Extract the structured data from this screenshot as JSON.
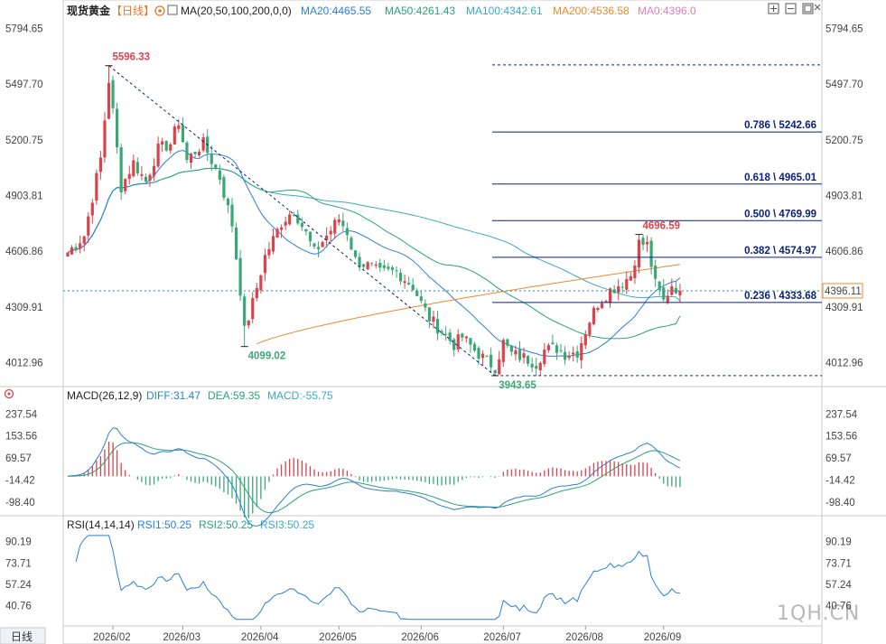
{
  "header": {
    "title": "现货黄金",
    "period_tag": "【日线】",
    "indicator_name": "MA(20,50,100,200,0,0)",
    "ma20": "MA20:4465.55",
    "ma50": "MA50:4261.43",
    "ma100": "MA100:4342.61",
    "ma200": "MA200:4536.58",
    "ma0": "MA0:4396.0"
  },
  "macd_header": {
    "name": "MACD(26,12,9)",
    "diff": "DIFF:31.47",
    "dea": "DEA:59.35",
    "macd": "MACD:-55.75"
  },
  "rsi_header": {
    "name": "RSI(14,14,14)",
    "rsi1": "RSI1:50.25",
    "rsi2": "RSI2:50.25",
    "rsi3": "RSI3:50.25"
  },
  "period_button": "日线",
  "watermark": "1QH.CN",
  "colors": {
    "up": "#d9434b",
    "down": "#3aa876",
    "ma20": "#2a7fd8",
    "ma50": "#2aa376",
    "ma100": "#3aa8c8",
    "ma200": "#e98a2f",
    "ma0": "#e07fbf",
    "fib": "#0b1f7a",
    "diff": "#2a7fd8",
    "dea": "#2aa376",
    "rsi": "#2a7fd8"
  },
  "chart_data": [
    {
      "type": "candlestick",
      "title": "现货黄金 日线",
      "ylim": [
        3900,
        5850
      ],
      "y_ticks": [
        "5794.65",
        "5497.70",
        "5200.75",
        "4903.81",
        "4606.86",
        "4309.91",
        "4012.96"
      ],
      "x_tick_labels": [
        "2026/02",
        "2026/03",
        "2026/04",
        "2026/05",
        "2026/06",
        "2026/07",
        "2026/08",
        "2026/09"
      ],
      "x_tick_index": [
        11,
        28,
        47,
        66,
        86,
        106,
        126,
        145
      ],
      "annotations": [
        {
          "label": "5596.33",
          "value": 5596.33,
          "index": 10
        },
        {
          "label": "4099.02",
          "value": 4099.02,
          "index": 43
        },
        {
          "label": "3943.65",
          "value": 3943.65,
          "index": 104
        },
        {
          "label": "4696.59",
          "value": 4696.59,
          "index": 139
        }
      ],
      "fibonacci": [
        {
          "label": "0.786 \\ 5242.66",
          "value": 5242.66
        },
        {
          "label": "0.618 \\ 4965.01",
          "value": 4965.01
        },
        {
          "label": "0.500 \\ 4769.99",
          "value": 4769.99
        },
        {
          "label": "0.382 \\ 4574.97",
          "value": 4574.97
        },
        {
          "label": "0.236 \\ 4333.68",
          "value": 4333.68
        }
      ],
      "top_dashed_level": 5600,
      "bottom_dashed_level": 3943.65,
      "current_price_label": "4396.11",
      "current_price": 4396.11,
      "ma20_last": 4465.55,
      "ma50_last": 4261.43,
      "ma100_last": 4342.61,
      "ma200_last": 4536.58,
      "ma0_last": 4396.0
    },
    {
      "type": "bar",
      "title": "MACD(26,12,9)",
      "ylim": [
        -140,
        280
      ],
      "y_ticks": [
        "237.54",
        "153.56",
        "69.57",
        "-14.42",
        "-98.40"
      ],
      "diff_last": 31.47,
      "dea_last": 59.35,
      "macd_last": -55.75
    },
    {
      "type": "line",
      "title": "RSI(14,14,14)",
      "ylim": [
        27,
        97
      ],
      "y_ticks": [
        "90.19",
        "73.71",
        "57.24",
        "40.76"
      ],
      "rsi_last": 50.25
    }
  ]
}
